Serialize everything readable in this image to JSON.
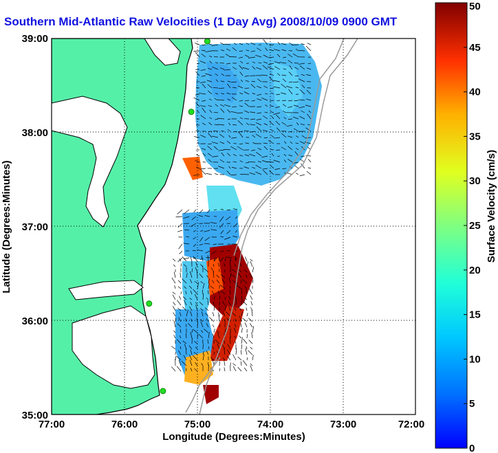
{
  "title": "Southern Mid-Atlantic Raw Velocities (1 Day Avg) 2008/10/09 0900 GMT",
  "x_axis": {
    "label": "Longitude (Degrees:Minutes)",
    "ticks": [
      "77:00",
      "76:00",
      "75:00",
      "74:00",
      "73:00",
      "72:00"
    ]
  },
  "y_axis": {
    "label": "Latitude (Degrees:Minutes)",
    "ticks": [
      "39:00",
      "38:00",
      "37:00",
      "36:00",
      "35:00"
    ]
  },
  "colorbar": {
    "label": "Surface Velocity (cm/s)",
    "ticks": [
      "0",
      "5",
      "10",
      "15",
      "20",
      "25",
      "30",
      "35",
      "40",
      "45",
      "50"
    ],
    "range": [
      0,
      50
    ],
    "colormap": "jet"
  },
  "colors": {
    "land": "#55f0a8",
    "coastline": "#000000",
    "title": "#1010e0",
    "grid": "#000000",
    "isobath": "#9a9a9a",
    "station": "#22dd22"
  },
  "chart_data": {
    "type": "heatmap",
    "x_range": [
      -77,
      -72
    ],
    "y_range": [
      35,
      39
    ],
    "value_range": [
      0,
      50
    ],
    "grid_lines": "dotted",
    "stations": [
      {
        "lon": -74.86,
        "lat": 38.97
      },
      {
        "lon": -75.08,
        "lat": 38.22
      },
      {
        "lon": -75.66,
        "lat": 36.18
      },
      {
        "lon": -75.47,
        "lat": 35.25
      }
    ]
  }
}
